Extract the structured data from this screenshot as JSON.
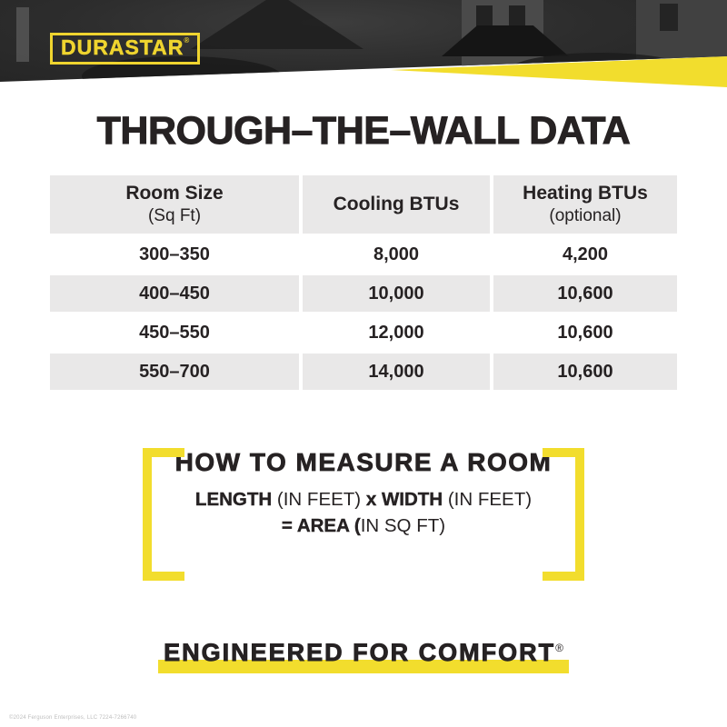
{
  "brand": {
    "logo": "DURASTAR",
    "mark": "®"
  },
  "title": "THROUGH–THE–WALL DATA",
  "table": {
    "columns": [
      {
        "title": "Room Size",
        "subtitle": "(Sq Ft)"
      },
      {
        "title": "Cooling BTUs",
        "subtitle": ""
      },
      {
        "title": "Heating BTUs",
        "subtitle": "(optional)"
      }
    ],
    "rows": [
      [
        "300–350",
        "8,000",
        "4,200"
      ],
      [
        "400–450",
        "10,000",
        "10,600"
      ],
      [
        "450–550",
        "12,000",
        "10,600"
      ],
      [
        "550–700",
        "14,000",
        "10,600"
      ]
    ]
  },
  "measure": {
    "heading": "HOW TO MEASURE A ROOM",
    "line1": {
      "bold1": "LENGTH",
      "reg1": " (IN FEET) ",
      "bold2": "x WIDTH",
      "reg2": " (IN FEET)"
    },
    "line2": {
      "bold1": "= AREA (",
      "reg1": "IN SQ FT)"
    }
  },
  "tagline": {
    "text": "ENGINEERED FOR COMFORT",
    "mark": "®"
  },
  "footer": {
    "copyright": "©2024 Ferguson Enterprises, LLC 7224-7266740"
  },
  "colors": {
    "brand_yellow": "#F2DD2D",
    "logo_yellow": "#EFD42F",
    "header_dark": "#2B2B2B",
    "row_gray": "#E9E8E8",
    "text_dark": "#262223"
  }
}
